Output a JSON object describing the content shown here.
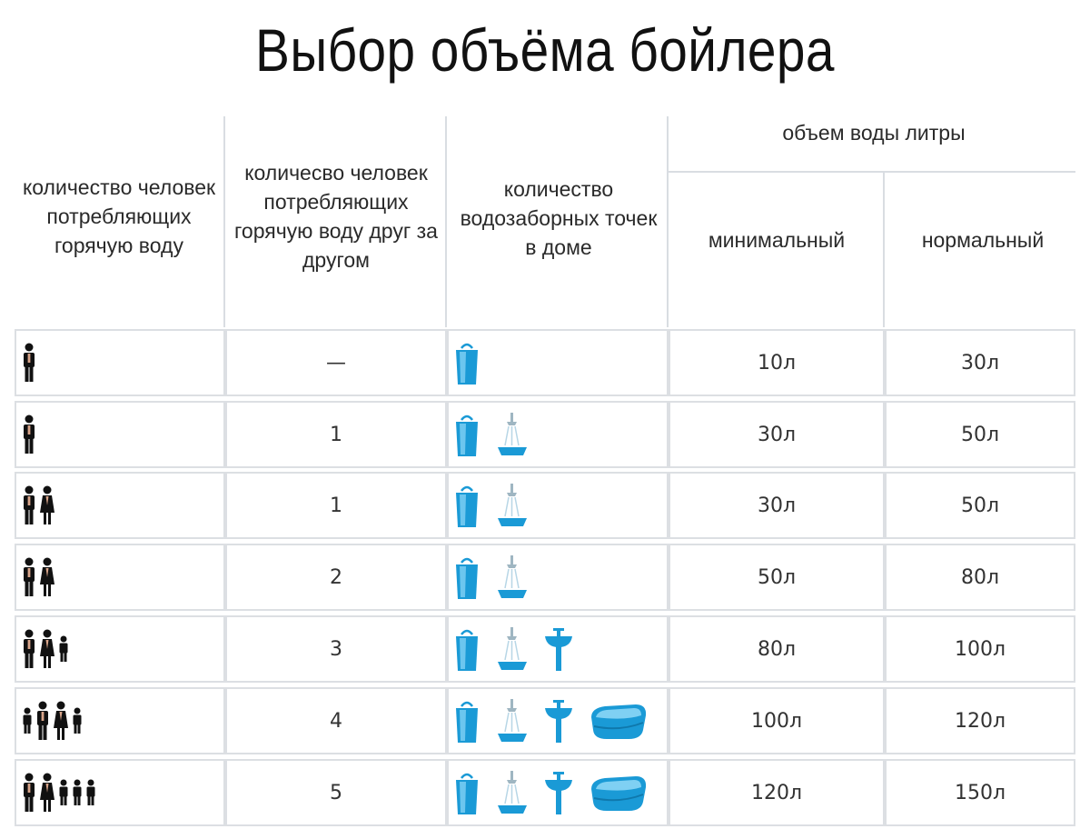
{
  "title": "Выбор объёма бойлера",
  "headers": {
    "people": "количество человек потребляющих горячую воду",
    "consecutive": "количесво человек потребляющих горячую воду друг за другом",
    "points": "количество водозаборных точек в доме",
    "volume": "объем воды литры",
    "min": "минимальный",
    "normal": "нормальный"
  },
  "rows": [
    {
      "people": [
        "man"
      ],
      "consecutive": "—",
      "points": [
        "bucket"
      ],
      "min": "10л",
      "normal": "30л"
    },
    {
      "people": [
        "man"
      ],
      "consecutive": "1",
      "points": [
        "bucket",
        "shower"
      ],
      "min": "30л",
      "normal": "50л"
    },
    {
      "people": [
        "man",
        "woman"
      ],
      "consecutive": "1",
      "points": [
        "bucket",
        "shower"
      ],
      "min": "30л",
      "normal": "50л"
    },
    {
      "people": [
        "man",
        "woman"
      ],
      "consecutive": "2",
      "points": [
        "bucket",
        "shower"
      ],
      "min": "50л",
      "normal": "80л"
    },
    {
      "people": [
        "man",
        "woman",
        "child"
      ],
      "consecutive": "3",
      "points": [
        "bucket",
        "shower",
        "sink"
      ],
      "min": "80л",
      "normal": "100л"
    },
    {
      "people": [
        "child",
        "man",
        "woman",
        "child"
      ],
      "consecutive": "4",
      "points": [
        "bucket",
        "shower",
        "sink",
        "bath"
      ],
      "min": "100л",
      "normal": "120л"
    },
    {
      "people": [
        "man",
        "woman",
        "child",
        "child",
        "child"
      ],
      "consecutive": "5",
      "points": [
        "bucket",
        "shower",
        "sink",
        "bath"
      ],
      "min": "120л",
      "normal": "150л"
    }
  ],
  "colors": {
    "icon_blue": "#1a9ad6",
    "person": "#111111",
    "grid": "#dcdfe3"
  }
}
